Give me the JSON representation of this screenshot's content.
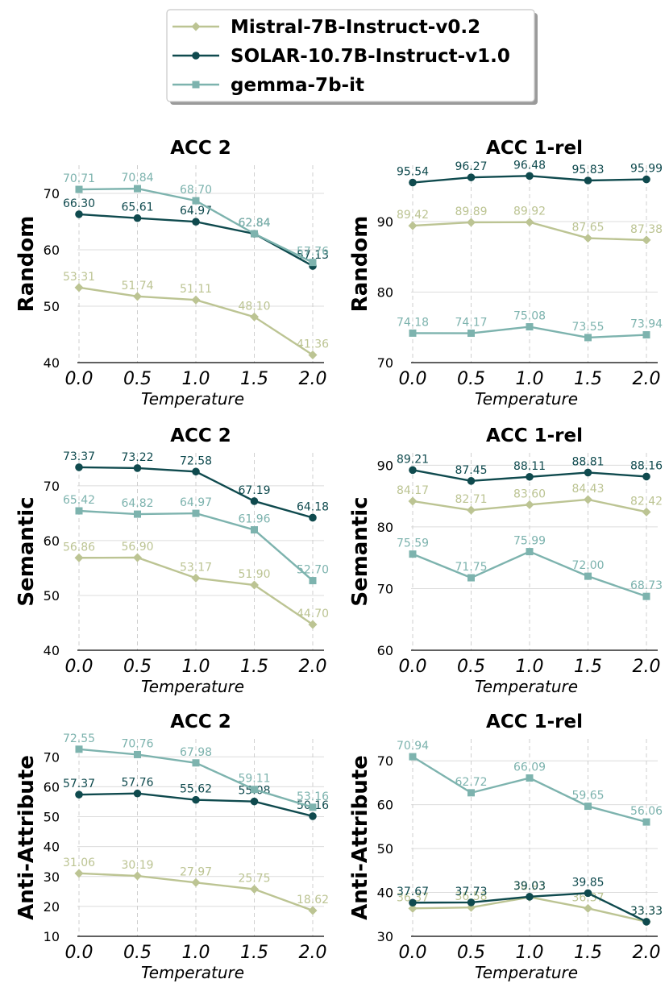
{
  "legend": {
    "items": [
      {
        "name": "Mistral-7B-Instruct-v0.2",
        "color": "#bcc493",
        "marker": "diamond"
      },
      {
        "name": "SOLAR-10.7B-Instruct-v1.0",
        "color": "#0f4a4e",
        "marker": "circle"
      },
      {
        "name": "gemma-7b-it",
        "color": "#7db3ae",
        "marker": "square"
      }
    ]
  },
  "chart_data": [
    {
      "type": "line",
      "title": "ACC 2",
      "ylabel": "Random",
      "xlabel": "Temperature",
      "x": [
        0.0,
        0.5,
        1.0,
        1.5,
        2.0
      ],
      "x_tick_labels": [
        "0.0",
        "0.5",
        "1.0",
        "1.5",
        "2.0"
      ],
      "ylim": [
        40,
        75
      ],
      "yticks": [
        40,
        50,
        60,
        70
      ],
      "series": [
        {
          "name": "Mistral-7B-Instruct-v0.2",
          "values": [
            53.31,
            51.74,
            51.11,
            48.1,
            41.36
          ],
          "labels": [
            "53.31",
            "51.74",
            "51.11",
            "48.10",
            "41.36"
          ]
        },
        {
          "name": "SOLAR-10.7B-Instruct-v1.0",
          "values": [
            66.3,
            65.61,
            64.97,
            62.84,
            57.13
          ],
          "labels": [
            "66.30",
            "65.61",
            "64.97",
            "62.84",
            "57.13"
          ]
        },
        {
          "name": "gemma-7b-it",
          "values": [
            70.71,
            70.84,
            68.7,
            62.84,
            57.76
          ],
          "labels": [
            "70.71",
            "70.84",
            "68.70",
            "62.84",
            "57.76"
          ]
        }
      ]
    },
    {
      "type": "line",
      "title": "ACC 1-rel",
      "ylabel": "Random",
      "xlabel": "Temperature",
      "x": [
        0.0,
        0.5,
        1.0,
        1.5,
        2.0
      ],
      "x_tick_labels": [
        "0.0",
        "0.5",
        "1.0",
        "1.5",
        "2.0"
      ],
      "ylim": [
        70,
        98
      ],
      "yticks": [
        70,
        80,
        90
      ],
      "series": [
        {
          "name": "Mistral-7B-Instruct-v0.2",
          "values": [
            89.42,
            89.89,
            89.92,
            87.65,
            87.38
          ],
          "labels": [
            "89.42",
            "89.89",
            "89.92",
            "87.65",
            "87.38"
          ]
        },
        {
          "name": "SOLAR-10.7B-Instruct-v1.0",
          "values": [
            95.54,
            96.27,
            96.48,
            95.83,
            95.99
          ],
          "labels": [
            "95.54",
            "96.27",
            "96.48",
            "95.83",
            "95.99"
          ]
        },
        {
          "name": "gemma-7b-it",
          "values": [
            74.18,
            74.17,
            75.08,
            73.55,
            73.94
          ],
          "labels": [
            "74.18",
            "74.17",
            "75.08",
            "73.55",
            "73.94"
          ]
        }
      ]
    },
    {
      "type": "line",
      "title": "ACC 2",
      "ylabel": "Semantic",
      "xlabel": "Temperature",
      "x": [
        0.0,
        0.5,
        1.0,
        1.5,
        2.0
      ],
      "x_tick_labels": [
        "0.0",
        "0.5",
        "1.0",
        "1.5",
        "2.0"
      ],
      "ylim": [
        40,
        76
      ],
      "yticks": [
        40,
        50,
        60,
        70
      ],
      "series": [
        {
          "name": "Mistral-7B-Instruct-v0.2",
          "values": [
            56.86,
            56.9,
            53.17,
            51.9,
            44.7
          ],
          "labels": [
            "56.86",
            "56.90",
            "53.17",
            "51.90",
            "44.70"
          ]
        },
        {
          "name": "SOLAR-10.7B-Instruct-v1.0",
          "values": [
            73.37,
            73.22,
            72.58,
            67.19,
            64.18
          ],
          "labels": [
            "73.37",
            "73.22",
            "72.58",
            "67.19",
            "64.18"
          ]
        },
        {
          "name": "gemma-7b-it",
          "values": [
            65.42,
            64.82,
            64.97,
            61.96,
            52.7
          ],
          "labels": [
            "65.42",
            "64.82",
            "64.97",
            "61.96",
            "52.70"
          ]
        }
      ]
    },
    {
      "type": "line",
      "title": "ACC 1-rel",
      "ylabel": "Semantic",
      "xlabel": "Temperature",
      "x": [
        0.0,
        0.5,
        1.0,
        1.5,
        2.0
      ],
      "x_tick_labels": [
        "0.0",
        "0.5",
        "1.0",
        "1.5",
        "2.0"
      ],
      "ylim": [
        60,
        92
      ],
      "yticks": [
        60,
        70,
        80,
        90
      ],
      "series": [
        {
          "name": "Mistral-7B-Instruct-v0.2",
          "values": [
            84.17,
            82.71,
            83.6,
            84.43,
            82.42
          ],
          "labels": [
            "84.17",
            "82.71",
            "83.60",
            "84.43",
            "82.42"
          ]
        },
        {
          "name": "SOLAR-10.7B-Instruct-v1.0",
          "values": [
            89.21,
            87.45,
            88.11,
            88.81,
            88.16
          ],
          "labels": [
            "89.21",
            "87.45",
            "88.11",
            "88.81",
            "88.16"
          ]
        },
        {
          "name": "gemma-7b-it",
          "values": [
            75.59,
            71.75,
            75.99,
            72.0,
            68.73
          ],
          "labels": [
            "75.59",
            "71.75",
            "75.99",
            "72.00",
            "68.73"
          ]
        }
      ]
    },
    {
      "type": "line",
      "title": "ACC 2",
      "ylabel": "Anti-Attribute",
      "xlabel": "Temperature",
      "x": [
        0.0,
        0.5,
        1.0,
        1.5,
        2.0
      ],
      "x_tick_labels": [
        "0.0",
        "0.5",
        "1.0",
        "1.5",
        "2.0"
      ],
      "ylim": [
        10,
        76
      ],
      "yticks": [
        10,
        20,
        30,
        40,
        50,
        60,
        70
      ],
      "series": [
        {
          "name": "Mistral-7B-Instruct-v0.2",
          "values": [
            31.06,
            30.19,
            27.97,
            25.75,
            18.62
          ],
          "labels": [
            "31.06",
            "30.19",
            "27.97",
            "25.75",
            "18.62"
          ]
        },
        {
          "name": "SOLAR-10.7B-Instruct-v1.0",
          "values": [
            57.37,
            57.76,
            55.62,
            55.08,
            50.16
          ],
          "labels": [
            "57.37",
            "57.76",
            "55.62",
            "55.08",
            "50.16"
          ]
        },
        {
          "name": "gemma-7b-it",
          "values": [
            72.55,
            70.76,
            67.98,
            59.11,
            53.16
          ],
          "labels": [
            "72.55",
            "70.76",
            "67.98",
            "59.11",
            "53.16"
          ]
        }
      ]
    },
    {
      "type": "line",
      "title": "ACC 1-rel",
      "ylabel": "Anti-Attribute",
      "xlabel": "Temperature",
      "x": [
        0.0,
        0.5,
        1.0,
        1.5,
        2.0
      ],
      "x_tick_labels": [
        "0.0",
        "0.5",
        "1.0",
        "1.5",
        "2.0"
      ],
      "ylim": [
        30,
        75
      ],
      "yticks": [
        30,
        40,
        50,
        60,
        70
      ],
      "series": [
        {
          "name": "Mistral-7B-Instruct-v0.2",
          "values": [
            36.37,
            36.58,
            38.93,
            36.37,
            33.33
          ],
          "labels": [
            "36.37",
            "36.58",
            "38.93",
            "36.37",
            "33.33"
          ]
        },
        {
          "name": "SOLAR-10.7B-Instruct-v1.0",
          "values": [
            37.67,
            37.73,
            39.03,
            39.85,
            33.33
          ],
          "labels": [
            "37.67",
            "37.73",
            "39.03",
            "39.85",
            "33.33"
          ]
        },
        {
          "name": "gemma-7b-it",
          "values": [
            70.94,
            62.72,
            66.09,
            59.65,
            56.06
          ],
          "labels": [
            "70.94",
            "62.72",
            "66.09",
            "59.65",
            "56.06"
          ]
        }
      ]
    }
  ]
}
